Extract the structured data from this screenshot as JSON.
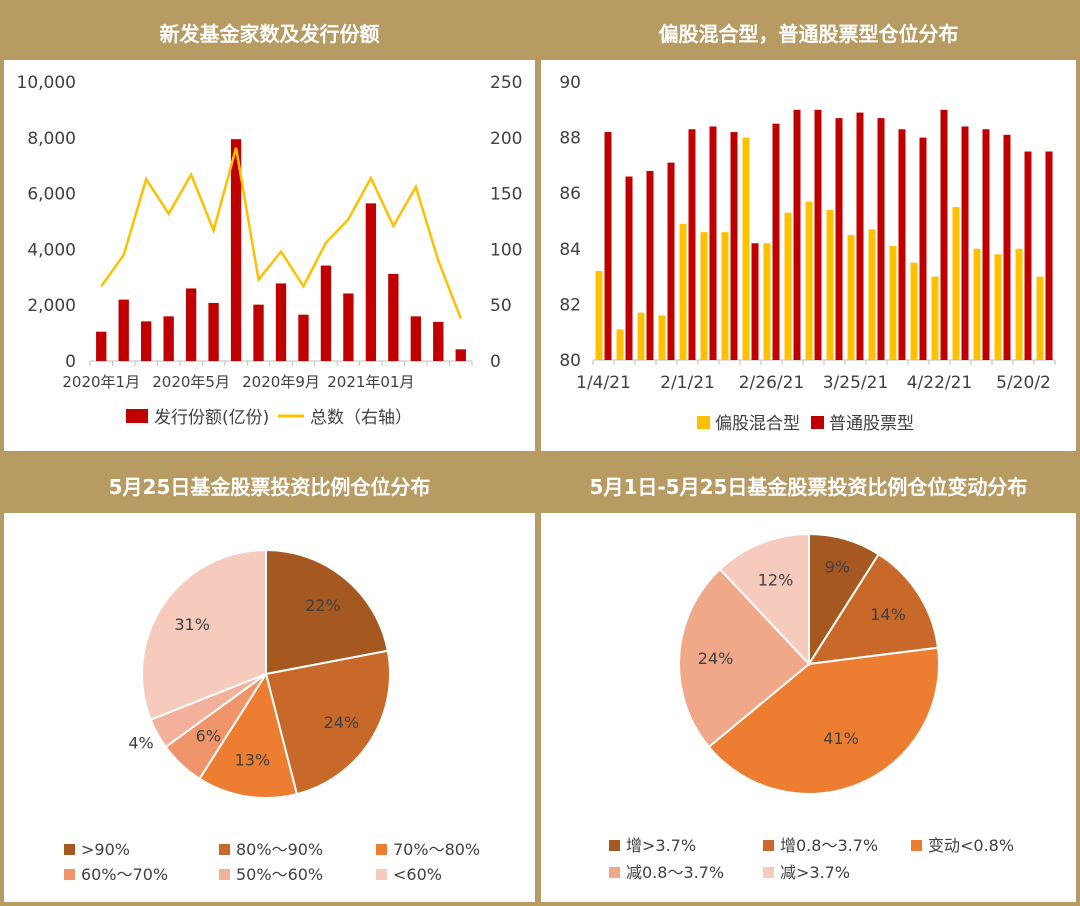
{
  "panels": [
    {
      "title": "新发基金家数及发行份额"
    },
    {
      "title": "偏股混合型，普通股票型仓位分布"
    },
    {
      "title": "5月25日基金股票投资比例仓位分布"
    },
    {
      "title": "5月1日-5月25日基金股票投资比例仓位变动分布"
    }
  ],
  "chart_data": [
    {
      "type": "bar+line",
      "x_tick_labels": [
        "2020年1月",
        "2020年5月",
        "2020年9月",
        "2021年01月"
      ],
      "categories": [
        "2020-01",
        "2020-02",
        "2020-03",
        "2020-04",
        "2020-05",
        "2020-06",
        "2020-07",
        "2020-08",
        "2020-09",
        "2020-10",
        "2020-11",
        "2020-12",
        "2021-01",
        "2021-02",
        "2021-03",
        "2021-04",
        "2021-05"
      ],
      "y_left": {
        "ticks": [
          "0",
          "2,000",
          "4,000",
          "6,000",
          "8,000",
          "10,000"
        ],
        "min": 0,
        "max": 10000
      },
      "y_right": {
        "ticks": [
          "0",
          "50",
          "100",
          "150",
          "200",
          "250"
        ],
        "min": 0,
        "max": 250
      },
      "series": [
        {
          "name": "发行份额(亿份)",
          "type": "bar",
          "axis": "left",
          "color": "#c00000",
          "values": [
            1050,
            2200,
            1420,
            1600,
            2600,
            2080,
            7950,
            2020,
            2780,
            1660,
            3420,
            2420,
            5650,
            3120,
            1600,
            1400,
            420
          ]
        },
        {
          "name": "总数（右轴）",
          "type": "line",
          "axis": "right",
          "color": "#ffc000",
          "values": [
            67,
            95,
            163,
            132,
            167,
            117,
            191,
            73,
            98,
            67,
            106,
            127,
            164,
            121,
            156,
            90,
            38
          ]
        }
      ],
      "legend_position": "bottom",
      "grid": false
    },
    {
      "type": "bar",
      "x_tick_labels": [
        "1/4/21",
        "2/1/21",
        "2/26/21",
        "3/25/21",
        "4/22/21",
        "5/20/2"
      ],
      "y": {
        "ticks": [
          "80",
          "82",
          "84",
          "86",
          "88",
          "90"
        ],
        "min": 80,
        "max": 90
      },
      "series": [
        {
          "name": "偏股混合型",
          "color": "#ffc000",
          "values": [
            83.2,
            81.1,
            81.7,
            81.6,
            84.9,
            84.6,
            84.6,
            88.0,
            84.2,
            85.3,
            85.7,
            85.4,
            84.5,
            84.7,
            84.1,
            83.5,
            83.0,
            85.5,
            84.0,
            83.8,
            84.0,
            83.0
          ]
        },
        {
          "name": "普通股票型",
          "color": "#c00000",
          "values": [
            88.2,
            86.6,
            86.8,
            87.1,
            88.3,
            88.4,
            88.2,
            84.2,
            88.5,
            89.0,
            89.0,
            88.7,
            88.9,
            88.7,
            88.3,
            88.0,
            89.0,
            88.4,
            88.3,
            88.1,
            87.5,
            87.5
          ]
        }
      ],
      "legend_position": "bottom",
      "grid": false
    },
    {
      "type": "pie",
      "slices": [
        {
          "label": ">90%",
          "value": 22,
          "display": "22%",
          "color": "#a65821"
        },
        {
          "label": "80%～90%",
          "value": 24,
          "display": "24%",
          "color": "#c8692a"
        },
        {
          "label": "70%～80%",
          "value": 13,
          "display": "13%",
          "color": "#ed7d31"
        },
        {
          "label": "60%～70%",
          "value": 6,
          "display": "6%",
          "color": "#f0946a"
        },
        {
          "label": "50%～60%",
          "value": 4,
          "display": "4%",
          "color": "#f3b09a"
        },
        {
          "label": "<60%",
          "value": 31,
          "display": "31%",
          "color": "#f6cbbd"
        }
      ],
      "legend_position": "bottom"
    },
    {
      "type": "pie",
      "slices": [
        {
          "label": "增>3.7%",
          "value": 9,
          "display": "9%",
          "color": "#a65821"
        },
        {
          "label": "增0.8～3.7%",
          "value": 14,
          "display": "14%",
          "color": "#c8692a"
        },
        {
          "label": "变动<0.8%",
          "value": 41,
          "display": "41%",
          "color": "#ed7d31"
        },
        {
          "label": "减0.8～3.7%",
          "value": 24,
          "display": "24%",
          "color": "#f0a889"
        },
        {
          "label": "减>3.7%",
          "value": 12,
          "display": "12%",
          "color": "#f6cbbd"
        }
      ],
      "legend_position": "bottom"
    }
  ]
}
